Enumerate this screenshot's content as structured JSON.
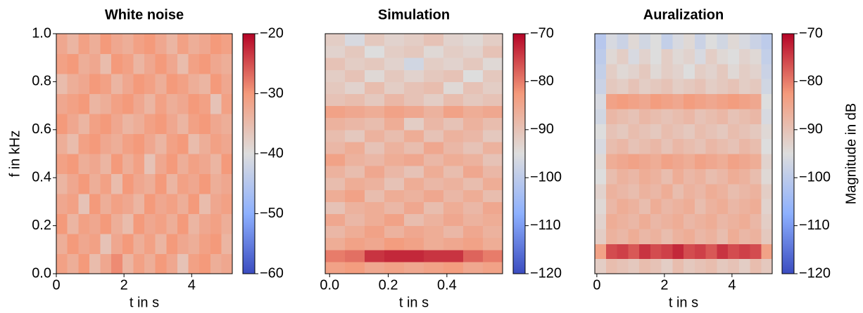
{
  "chart_data": [
    {
      "type": "heatmap",
      "title": "White noise",
      "xlabel": "t in s",
      "ylabel": "f in kHz",
      "colormap": "coolwarm",
      "xlim": [
        0,
        5.2
      ],
      "ylim": [
        0,
        1
      ],
      "xticks": [
        0,
        2,
        4
      ],
      "yticks": [
        {
          "value": 0,
          "label": "0.0"
        },
        0.2,
        0.4,
        0.6,
        0.8,
        {
          "value": 1,
          "label": "1.0"
        }
      ],
      "clim": [
        -60,
        -20
      ],
      "cticks": [
        {
          "value": -60,
          "label": "−60"
        },
        {
          "value": -50,
          "label": "−50"
        },
        {
          "value": -40,
          "label": "−40"
        },
        {
          "value": -30,
          "label": "−30"
        },
        {
          "value": -20,
          "label": "−20"
        }
      ],
      "values": [
        [
          -31,
          -33,
          -30,
          -35,
          -32,
          -29,
          -34,
          -31,
          -33,
          -30,
          -32,
          -36,
          -31,
          -30,
          -33,
          -32
        ],
        [
          -33,
          -30,
          -32,
          -31,
          -36,
          -32,
          -30,
          -33,
          -31,
          -34,
          -30,
          -32,
          -33,
          -31,
          -30,
          -34
        ],
        [
          -30,
          -34,
          -31,
          -32,
          -30,
          -33,
          -35,
          -30,
          -32,
          -31,
          -33,
          -30,
          -34,
          -32,
          -31,
          -33
        ],
        [
          -32,
          -31,
          -36,
          -30,
          -33,
          -31,
          -32,
          -34,
          -30,
          -32,
          -31,
          -33,
          -30,
          -35,
          -32,
          -31
        ],
        [
          -34,
          -32,
          -30,
          -33,
          -31,
          -35,
          -30,
          -32,
          -33,
          -30,
          -34,
          -31,
          -32,
          -30,
          -33,
          -32
        ],
        [
          -31,
          -30,
          -33,
          -32,
          -34,
          -30,
          -33,
          -31,
          -36,
          -32,
          -30,
          -33,
          -31,
          -32,
          -34,
          -30
        ],
        [
          -33,
          -35,
          -31,
          -30,
          -32,
          -33,
          -31,
          -30,
          -32,
          -34,
          -31,
          -30,
          -35,
          -33,
          -31,
          -32
        ],
        [
          -30,
          -32,
          -34,
          -31,
          -30,
          -32,
          -34,
          -33,
          -31,
          -30,
          -32,
          -34,
          -31,
          -30,
          -32,
          -33
        ],
        [
          -32,
          -31,
          -30,
          -34,
          -33,
          -31,
          -30,
          -32,
          -34,
          -31,
          -33,
          -32,
          -30,
          -31,
          -36,
          -31
        ],
        [
          -35,
          -33,
          -32,
          -30,
          -31,
          -34,
          -32,
          -30,
          -31,
          -33,
          -30,
          -31,
          -33,
          -34,
          -30,
          -32
        ],
        [
          -31,
          -30,
          -33,
          -32,
          -35,
          -30,
          -31,
          -34,
          -32,
          -30,
          -32,
          -35,
          -31,
          -30,
          -32,
          -33
        ],
        [
          -32,
          -34,
          -31,
          -33,
          -30,
          -32,
          -33,
          -31,
          -30,
          -32,
          -34,
          -31,
          -33,
          -32,
          -30,
          -31
        ]
      ]
    },
    {
      "type": "heatmap",
      "title": "Simulation",
      "xlabel": "t in s",
      "colormap": "coolwarm",
      "xlim": [
        -0.015,
        0.59
      ],
      "ylim": [
        0,
        1
      ],
      "xticks": [
        {
          "value": 0,
          "label": "0.0"
        },
        0.2,
        0.4
      ],
      "clim": [
        -120,
        -70
      ],
      "cticks": [
        {
          "value": -120,
          "label": "−120"
        },
        {
          "value": -110,
          "label": "−110"
        },
        {
          "value": -100,
          "label": "−100"
        },
        {
          "value": -90,
          "label": "−90"
        },
        {
          "value": -80,
          "label": "−80"
        },
        {
          "value": -70,
          "label": "−70"
        }
      ],
      "values": [
        [
          -84,
          -83,
          -85,
          -84,
          -85,
          -84,
          -83,
          -85,
          -84
        ],
        [
          -80,
          -79,
          -74,
          -73,
          -73,
          -74,
          -74,
          -78,
          -80
        ],
        [
          -86,
          -84,
          -85,
          -83,
          -84,
          -86,
          -85,
          -84,
          -86
        ],
        [
          -88,
          -86,
          -84,
          -87,
          -85,
          -86,
          -88,
          -85,
          -87
        ],
        [
          -85,
          -88,
          -86,
          -84,
          -89,
          -87,
          -85,
          -87,
          -86
        ],
        [
          -90,
          -87,
          -86,
          -88,
          -85,
          -89,
          -86,
          -88,
          -85
        ],
        [
          -86,
          -84,
          -89,
          -86,
          -87,
          -85,
          -88,
          -86,
          -89
        ],
        [
          -89,
          -86,
          -87,
          -90,
          -86,
          -88,
          -87,
          -89,
          -86
        ],
        [
          -87,
          -89,
          -85,
          -88,
          -90,
          -86,
          -89,
          -85,
          -88
        ],
        [
          -84,
          -87,
          -88,
          -86,
          -85,
          -88,
          -86,
          -87,
          -90
        ],
        [
          -88,
          -86,
          -90,
          -87,
          -89,
          -85,
          -88,
          -90,
          -87
        ],
        [
          -89,
          -91,
          -87,
          -89,
          -86,
          -90,
          -87,
          -88,
          -91
        ],
        [
          -87,
          -88,
          -89,
          -86,
          -92,
          -88,
          -90,
          -87,
          -89
        ],
        [
          -84,
          -85,
          -86,
          -84,
          -85,
          -87,
          -84,
          -86,
          -85
        ],
        [
          -90,
          -89,
          -91,
          -88,
          -90,
          -92,
          -89,
          -91,
          -90
        ],
        [
          -91,
          -93,
          -89,
          -92,
          -90,
          -89,
          -94,
          -90,
          -92
        ],
        [
          -92,
          -90,
          -94,
          -91,
          -93,
          -91,
          -90,
          -95,
          -91
        ],
        [
          -90,
          -92,
          -91,
          -93,
          -97,
          -92,
          -93,
          -91,
          -94
        ],
        [
          -93,
          -91,
          -95,
          -92,
          -91,
          -94,
          -92,
          -93,
          -90
        ],
        [
          -92,
          -96,
          -91,
          -93,
          -92,
          -90,
          -93,
          -94,
          -92
        ]
      ]
    },
    {
      "type": "heatmap",
      "title": "Auralization",
      "xlabel": "t in s",
      "colormap": "coolwarm",
      "colorbar_label": "Magnitude in dB",
      "xlim": [
        -0.06,
        5.19
      ],
      "ylim": [
        0,
        1
      ],
      "xticks": [
        0,
        2,
        4
      ],
      "clim": [
        -120,
        -70
      ],
      "cticks": [
        {
          "value": -120,
          "label": "−120"
        },
        {
          "value": -110,
          "label": "−110"
        },
        {
          "value": -100,
          "label": "−100"
        },
        {
          "value": -90,
          "label": "−90"
        },
        {
          "value": -80,
          "label": "−80"
        },
        {
          "value": -70,
          "label": "−70"
        }
      ],
      "values": [
        [
          -92,
          -89,
          -90,
          -91,
          -89,
          -90,
          -92,
          -89,
          -91,
          -90,
          -89,
          -91,
          -90,
          -92,
          -89,
          -91
        ],
        [
          -84,
          -76,
          -75,
          -77,
          -74,
          -76,
          -75,
          -73,
          -76,
          -75,
          -77,
          -74,
          -76,
          -75,
          -76,
          -84
        ],
        [
          -92,
          -87,
          -88,
          -86,
          -88,
          -87,
          -89,
          -87,
          -86,
          -88,
          -87,
          -89,
          -86,
          -88,
          -87,
          -91
        ],
        [
          -93,
          -86,
          -87,
          -88,
          -86,
          -88,
          -87,
          -86,
          -88,
          -87,
          -86,
          -88,
          -87,
          -86,
          -88,
          -92
        ],
        [
          -94,
          -88,
          -86,
          -87,
          -89,
          -86,
          -88,
          -87,
          -86,
          -89,
          -87,
          -86,
          -88,
          -87,
          -86,
          -93
        ],
        [
          -93,
          -87,
          -88,
          -89,
          -87,
          -88,
          -86,
          -89,
          -87,
          -88,
          -86,
          -87,
          -89,
          -88,
          -87,
          -92
        ],
        [
          -95,
          -89,
          -87,
          -88,
          -86,
          -87,
          -89,
          -86,
          -88,
          -87,
          -89,
          -88,
          -86,
          -87,
          -89,
          -94
        ],
        [
          -94,
          -86,
          -85,
          -84,
          -85,
          -86,
          -84,
          -85,
          -86,
          -84,
          -85,
          -86,
          -84,
          -85,
          -86,
          -93
        ],
        [
          -96,
          -89,
          -88,
          -90,
          -89,
          -88,
          -90,
          -88,
          -89,
          -90,
          -88,
          -89,
          -90,
          -88,
          -89,
          -95
        ],
        [
          -95,
          -90,
          -91,
          -89,
          -90,
          -91,
          -89,
          -90,
          -91,
          -89,
          -90,
          -91,
          -89,
          -90,
          -91,
          -94
        ],
        [
          -97,
          -88,
          -89,
          -90,
          -88,
          -89,
          -90,
          -89,
          -88,
          -90,
          -89,
          -88,
          -90,
          -89,
          -88,
          -96
        ],
        [
          -96,
          -84,
          -83,
          -84,
          -85,
          -83,
          -84,
          -85,
          -83,
          -84,
          -85,
          -84,
          -83,
          -84,
          -85,
          -95
        ],
        [
          -98,
          -91,
          -92,
          -90,
          -92,
          -91,
          -90,
          -92,
          -91,
          -90,
          -92,
          -91,
          -90,
          -92,
          -91,
          -97
        ],
        [
          -99,
          -92,
          -94,
          -93,
          -91,
          -94,
          -92,
          -93,
          -95,
          -92,
          -93,
          -91,
          -94,
          -92,
          -93,
          -98
        ],
        [
          -100,
          -94,
          -92,
          -96,
          -93,
          -95,
          -92,
          -94,
          -93,
          -96,
          -92,
          -94,
          -95,
          -93,
          -94,
          -99
        ],
        [
          -101,
          -96,
          -98,
          -94,
          -97,
          -95,
          -99,
          -96,
          -94,
          -98,
          -95,
          -97,
          -94,
          -96,
          -98,
          -100
        ]
      ]
    }
  ]
}
